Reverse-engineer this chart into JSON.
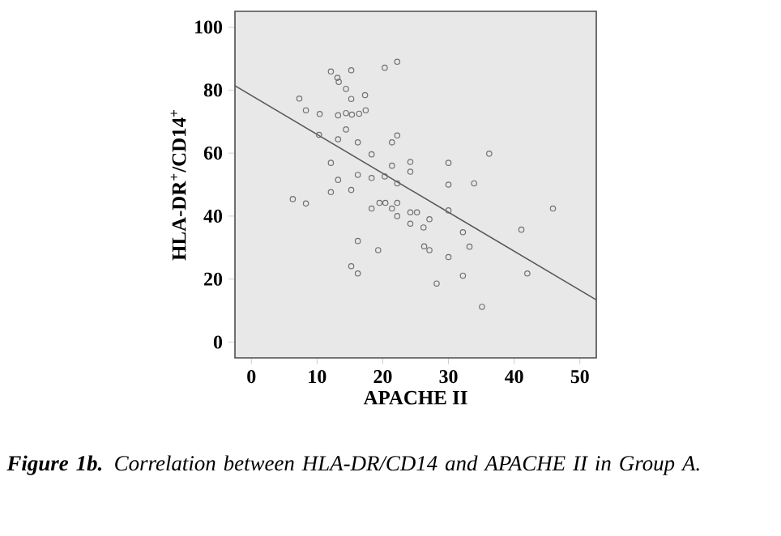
{
  "chart_data": {
    "type": "scatter",
    "xlabel": "APACHE II",
    "ylabel": "HLA-DR$^{+}$/CD14$^{+}$",
    "annotations": [
      "**Figure 1b.** Correlation between HLA-DR/CD14 and APACHE II in Group A."
    ],
    "xlim": [
      -2.5,
      52.5
    ],
    "ylim": [
      -5,
      105
    ],
    "xticks": [
      0,
      10,
      20,
      30,
      40,
      50
    ],
    "yticks": [
      0,
      20,
      40,
      60,
      80,
      100
    ],
    "grid": false,
    "marker": "circle",
    "series": [
      {
        "color": "#707070",
        "x": [
          12.1,
          13.1,
          13.3,
          15.2,
          20.3,
          22.2,
          14.4,
          15.2,
          17.3,
          7.3,
          8.3,
          10.4,
          13.2,
          14.4,
          15.3,
          16.4,
          17.4,
          14.4,
          10.3,
          13.2,
          16.2,
          21.4,
          22.2,
          18.3,
          36.2,
          12.1,
          21.4,
          24.2,
          24.2,
          30.0,
          13.2,
          16.2,
          18.3,
          20.3,
          15.2,
          12.1,
          22.2,
          30.0,
          33.9,
          6.3,
          8.3,
          18.3,
          19.5,
          20.4,
          21.4,
          22.2,
          22.2,
          24.2,
          25.2,
          24.2,
          26.2,
          27.1,
          30.0,
          32.2,
          41.1,
          45.9,
          16.2,
          19.3,
          26.3,
          27.1,
          33.2,
          30.0,
          15.2,
          16.2,
          32.2,
          42.0,
          28.2,
          35.1
        ],
        "values": [
          85.9,
          83.9,
          82.6,
          86.3,
          87.1,
          89.0,
          80.4,
          77.2,
          78.4,
          77.3,
          73.6,
          72.4,
          72.0,
          72.7,
          72.2,
          72.5,
          73.6,
          67.5,
          65.8,
          64.4,
          63.4,
          63.4,
          65.6,
          59.6,
          59.8,
          56.9,
          56.0,
          57.2,
          54.1,
          56.9,
          51.5,
          53.1,
          52.1,
          52.6,
          48.3,
          47.6,
          50.4,
          50.0,
          50.4,
          45.4,
          44.0,
          42.4,
          44.2,
          44.2,
          42.4,
          44.2,
          40.0,
          41.2,
          41.2,
          37.6,
          36.4,
          39.0,
          41.8,
          34.9,
          35.7,
          42.4,
          32.1,
          29.2,
          30.4,
          29.2,
          30.3,
          27.0,
          24.1,
          21.8,
          21.1,
          21.8,
          18.6,
          11.2
        ]
      },
      {
        "type": "line",
        "color": "#555555",
        "line_style": "solid",
        "marker": "none",
        "x": [
          -2.5,
          52.5
        ],
        "values": [
          81.4,
          13.4
        ]
      }
    ]
  }
}
